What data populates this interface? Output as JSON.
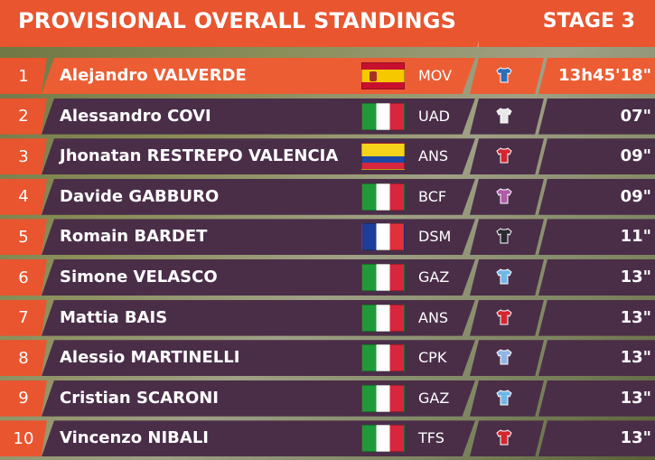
{
  "header": {
    "title": "PROVISIONAL OVERALL STANDINGS",
    "stage": "STAGE 3"
  },
  "colors": {
    "accent": "#e8552f",
    "row_band": "#4a2e48"
  },
  "standings": [
    {
      "rank": "1",
      "name": "Alejandro VALVERDE",
      "flag": "spain-flag",
      "team": "MOV",
      "jersey": "jersey-icon",
      "jersey_color": "#2f6db5",
      "time": "13h45'18\""
    },
    {
      "rank": "2",
      "name": "Alessandro COVI",
      "flag": "italy-flag",
      "team": "UAD",
      "jersey": "jersey-icon",
      "jersey_color": "#e8e8e8",
      "time": "07\""
    },
    {
      "rank": "3",
      "name": "Jhonatan RESTREPO VALENCIA",
      "flag": "colombia-flag",
      "team": "ANS",
      "jersey": "jersey-icon",
      "jersey_color": "#d4262e",
      "time": "09\""
    },
    {
      "rank": "4",
      "name": "Davide GABBURO",
      "flag": "italy-flag",
      "team": "BCF",
      "jersey": "jersey-icon",
      "jersey_color": "#b05aa8",
      "time": "09\""
    },
    {
      "rank": "5",
      "name": "Romain BARDET",
      "flag": "france-flag",
      "team": "DSM",
      "jersey": "jersey-icon",
      "jersey_color": "#2b2b33",
      "time": "11\""
    },
    {
      "rank": "6",
      "name": "Simone VELASCO",
      "flag": "italy-flag",
      "team": "GAZ",
      "jersey": "jersey-icon",
      "jersey_color": "#6fb7e8",
      "time": "13\""
    },
    {
      "rank": "7",
      "name": "Mattia BAIS",
      "flag": "italy-flag",
      "team": "ANS",
      "jersey": "jersey-icon",
      "jersey_color": "#d4262e",
      "time": "13\""
    },
    {
      "rank": "8",
      "name": "Alessio MARTINELLI",
      "flag": "italy-flag",
      "team": "CPK",
      "jersey": "jersey-icon",
      "jersey_color": "#8fb4e6",
      "time": "13\""
    },
    {
      "rank": "9",
      "name": "Cristian SCARONI",
      "flag": "italy-flag",
      "team": "GAZ",
      "jersey": "jersey-icon",
      "jersey_color": "#6fb7e8",
      "time": "13\""
    },
    {
      "rank": "10",
      "name": "Vincenzo NIBALI",
      "flag": "italy-flag",
      "team": "TFS",
      "jersey": "jersey-icon",
      "jersey_color": "#d4262e",
      "time": "13\""
    }
  ]
}
